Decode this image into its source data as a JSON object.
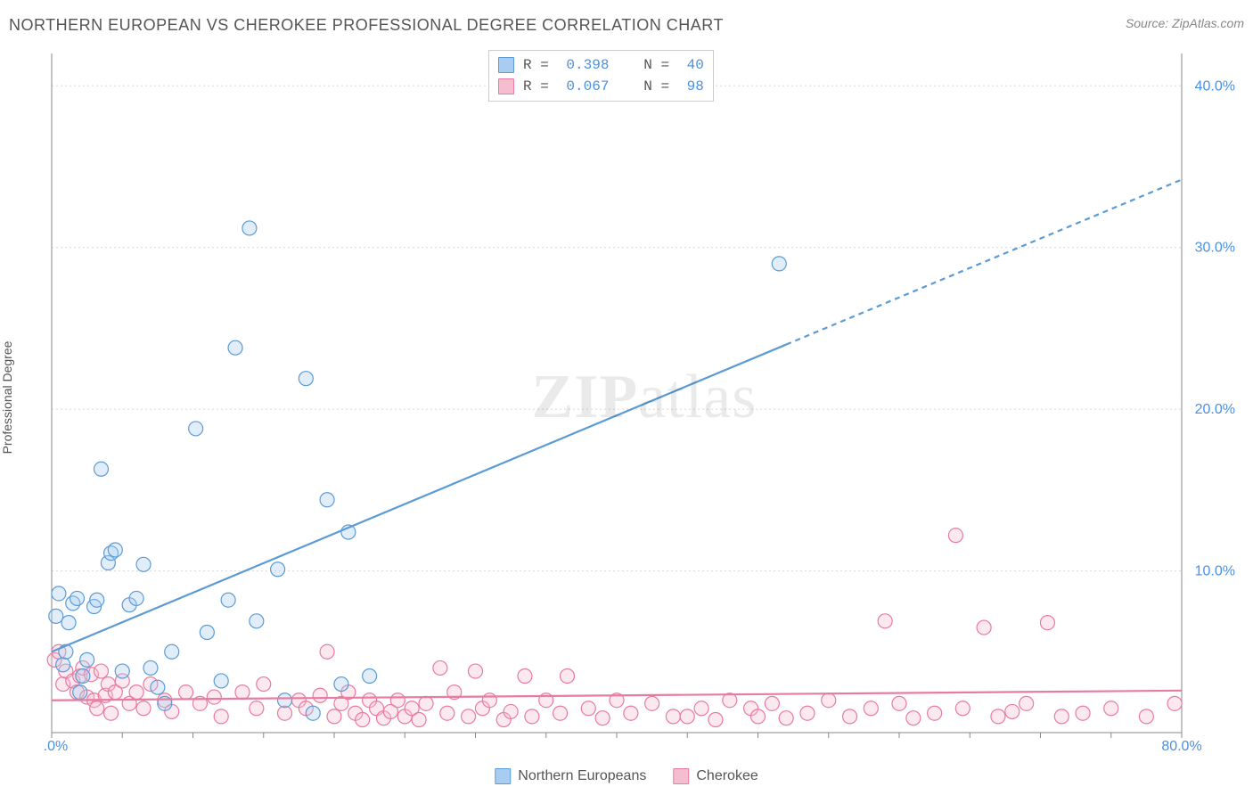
{
  "header": {
    "title": "NORTHERN EUROPEAN VS CHEROKEE PROFESSIONAL DEGREE CORRELATION CHART",
    "source_label": "Source: ZipAtlas.com"
  },
  "watermark": {
    "prefix": "ZIP",
    "suffix": "atlas"
  },
  "y_axis": {
    "label": "Professional Degree"
  },
  "chart": {
    "type": "scatter",
    "xlim": [
      0,
      80
    ],
    "ylim": [
      0,
      42
    ],
    "x_ticks_minor": [
      0,
      5,
      10,
      15,
      20,
      25,
      30,
      35,
      40,
      45,
      50,
      55,
      60,
      65,
      70,
      75,
      80
    ],
    "x_tick_labels": [
      {
        "value": 0,
        "label": "0.0%"
      },
      {
        "value": 80,
        "label": "80.0%"
      }
    ],
    "y_tick_labels": [
      {
        "value": 10,
        "label": "10.0%"
      },
      {
        "value": 20,
        "label": "20.0%"
      },
      {
        "value": 30,
        "label": "30.0%"
      },
      {
        "value": 40,
        "label": "40.0%"
      }
    ],
    "y_gridlines": [
      10,
      20,
      30,
      40
    ],
    "grid_color": "#d8d8d8",
    "grid_dash": "2,3",
    "axis_color": "#888",
    "background_color": "#ffffff",
    "marker_radius": 8,
    "marker_stroke_width": 1.2,
    "marker_fill_opacity": 0.35,
    "series": [
      {
        "name": "Northern Europeans",
        "color_stroke": "#5b9bd5",
        "color_fill": "#a8cdf0",
        "points": [
          [
            0.3,
            7.2
          ],
          [
            0.5,
            8.6
          ],
          [
            0.8,
            4.2
          ],
          [
            1.0,
            5.0
          ],
          [
            1.2,
            6.8
          ],
          [
            1.5,
            8.0
          ],
          [
            1.8,
            8.3
          ],
          [
            2.0,
            2.5
          ],
          [
            2.2,
            3.5
          ],
          [
            2.5,
            4.5
          ],
          [
            3.0,
            7.8
          ],
          [
            3.2,
            8.2
          ],
          [
            3.5,
            16.3
          ],
          [
            4.0,
            10.5
          ],
          [
            4.2,
            11.1
          ],
          [
            4.5,
            11.3
          ],
          [
            5.0,
            3.8
          ],
          [
            5.5,
            7.9
          ],
          [
            6.0,
            8.3
          ],
          [
            6.5,
            10.4
          ],
          [
            7.0,
            4.0
          ],
          [
            7.5,
            2.8
          ],
          [
            8.0,
            1.8
          ],
          [
            8.5,
            5.0
          ],
          [
            10.2,
            18.8
          ],
          [
            11.0,
            6.2
          ],
          [
            12.0,
            3.2
          ],
          [
            12.5,
            8.2
          ],
          [
            13.0,
            23.8
          ],
          [
            14.0,
            31.2
          ],
          [
            14.5,
            6.9
          ],
          [
            16.0,
            10.1
          ],
          [
            16.5,
            2.0
          ],
          [
            18.0,
            21.9
          ],
          [
            18.5,
            1.2
          ],
          [
            19.5,
            14.4
          ],
          [
            20.5,
            3.0
          ],
          [
            21.0,
            12.4
          ],
          [
            22.5,
            3.5
          ],
          [
            51.5,
            29.0
          ]
        ],
        "regression": {
          "x1": 0,
          "y1": 5.0,
          "x2": 52,
          "y2": 24.0,
          "x2_ext": 80,
          "y2_ext": 34.2,
          "line_width": 2.2
        }
      },
      {
        "name": "Cherokee",
        "color_stroke": "#e87ba0",
        "color_fill": "#f5bdd0",
        "points": [
          [
            0.2,
            4.5
          ],
          [
            0.5,
            5.0
          ],
          [
            0.8,
            3.0
          ],
          [
            1.0,
            3.8
          ],
          [
            1.5,
            3.2
          ],
          [
            1.8,
            2.5
          ],
          [
            2.0,
            3.5
          ],
          [
            2.2,
            4.0
          ],
          [
            2.5,
            2.2
          ],
          [
            2.8,
            3.6
          ],
          [
            3.0,
            2.0
          ],
          [
            3.2,
            1.5
          ],
          [
            3.5,
            3.8
          ],
          [
            3.8,
            2.3
          ],
          [
            4.0,
            3.0
          ],
          [
            4.2,
            1.2
          ],
          [
            4.5,
            2.5
          ],
          [
            5.0,
            3.2
          ],
          [
            5.5,
            1.8
          ],
          [
            6.0,
            2.5
          ],
          [
            6.5,
            1.5
          ],
          [
            7.0,
            3.0
          ],
          [
            8.0,
            2.0
          ],
          [
            8.5,
            1.3
          ],
          [
            9.5,
            2.5
          ],
          [
            10.5,
            1.8
          ],
          [
            11.5,
            2.2
          ],
          [
            12.0,
            1.0
          ],
          [
            13.5,
            2.5
          ],
          [
            14.5,
            1.5
          ],
          [
            15.0,
            3.0
          ],
          [
            16.5,
            1.2
          ],
          [
            17.5,
            2.0
          ],
          [
            18.0,
            1.5
          ],
          [
            19.0,
            2.3
          ],
          [
            19.5,
            5.0
          ],
          [
            20.0,
            1.0
          ],
          [
            20.5,
            1.8
          ],
          [
            21.0,
            2.5
          ],
          [
            21.5,
            1.2
          ],
          [
            22.0,
            0.8
          ],
          [
            22.5,
            2.0
          ],
          [
            23.0,
            1.5
          ],
          [
            23.5,
            0.9
          ],
          [
            24.0,
            1.3
          ],
          [
            24.5,
            2.0
          ],
          [
            25.0,
            1.0
          ],
          [
            25.5,
            1.5
          ],
          [
            26.0,
            0.8
          ],
          [
            26.5,
            1.8
          ],
          [
            27.5,
            4.0
          ],
          [
            28.0,
            1.2
          ],
          [
            28.5,
            2.5
          ],
          [
            29.5,
            1.0
          ],
          [
            30.0,
            3.8
          ],
          [
            30.5,
            1.5
          ],
          [
            31.0,
            2.0
          ],
          [
            32.0,
            0.8
          ],
          [
            32.5,
            1.3
          ],
          [
            33.5,
            3.5
          ],
          [
            34.0,
            1.0
          ],
          [
            35.0,
            2.0
          ],
          [
            36.0,
            1.2
          ],
          [
            36.5,
            3.5
          ],
          [
            38.0,
            1.5
          ],
          [
            39.0,
            0.9
          ],
          [
            40.0,
            2.0
          ],
          [
            41.0,
            1.2
          ],
          [
            42.5,
            1.8
          ],
          [
            44.0,
            1.0
          ],
          [
            45.0,
            1.0
          ],
          [
            46.0,
            1.5
          ],
          [
            47.0,
            0.8
          ],
          [
            48.0,
            2.0
          ],
          [
            49.5,
            1.5
          ],
          [
            50.0,
            1.0
          ],
          [
            51.0,
            1.8
          ],
          [
            52.0,
            0.9
          ],
          [
            53.5,
            1.2
          ],
          [
            55.0,
            2.0
          ],
          [
            56.5,
            1.0
          ],
          [
            58.0,
            1.5
          ],
          [
            59.0,
            6.9
          ],
          [
            60.0,
            1.8
          ],
          [
            61.0,
            0.9
          ],
          [
            62.5,
            1.2
          ],
          [
            64.0,
            12.2
          ],
          [
            64.5,
            1.5
          ],
          [
            66.0,
            6.5
          ],
          [
            67.0,
            1.0
          ],
          [
            68.0,
            1.3
          ],
          [
            69.0,
            1.8
          ],
          [
            70.5,
            6.8
          ],
          [
            71.5,
            1.0
          ],
          [
            73.0,
            1.2
          ],
          [
            75.0,
            1.5
          ],
          [
            77.5,
            1.0
          ],
          [
            79.5,
            1.8
          ]
        ],
        "regression": {
          "x1": 0,
          "y1": 2.0,
          "x2": 80,
          "y2": 2.6,
          "line_width": 2.2
        }
      }
    ]
  },
  "stats_legend": {
    "position_left_pct": 37,
    "rows": [
      {
        "swatch_stroke": "#5b9bd5",
        "swatch_fill": "#a8cdf0",
        "R_label": "R =",
        "R": "0.398",
        "N_label": "N =",
        "N": "40"
      },
      {
        "swatch_stroke": "#e87ba0",
        "swatch_fill": "#f5bdd0",
        "R_label": "R =",
        "R": "0.067",
        "N_label": "N =",
        "N": "98"
      }
    ]
  },
  "bottom_legend": [
    {
      "label": "Northern Europeans",
      "stroke": "#5b9bd5",
      "fill": "#a8cdf0"
    },
    {
      "label": "Cherokee",
      "stroke": "#e87ba0",
      "fill": "#f5bdd0"
    }
  ]
}
